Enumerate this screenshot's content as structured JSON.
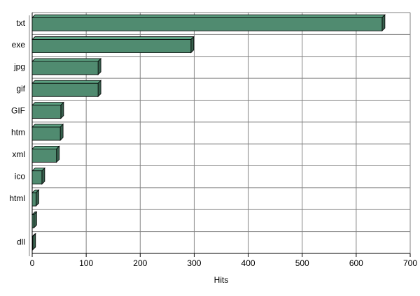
{
  "chart_data": {
    "type": "hbar3d",
    "categories": [
      "txt",
      "exe",
      "jpg",
      "gif",
      "GIF",
      "htm",
      "xml",
      "ico",
      "html",
      null,
      "dll"
    ],
    "values": [
      648,
      294,
      122,
      122,
      53,
      52,
      45,
      18,
      7,
      3,
      1
    ],
    "color": "#508b70",
    "xlim": [
      0,
      700
    ],
    "xticks": [
      0,
      100,
      200,
      300,
      400,
      500,
      600,
      700
    ],
    "x_label": "Hits",
    "grid": true
  }
}
